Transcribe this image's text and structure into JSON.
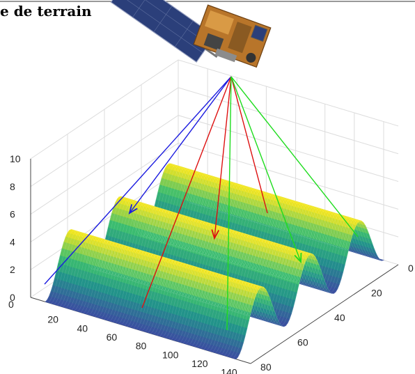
{
  "title": "e de terrain",
  "axes": {
    "x_ticks": [
      "20",
      "40",
      "60",
      "80",
      "100",
      "120",
      "140"
    ],
    "y_ticks": [
      "0",
      "20",
      "40",
      "60",
      "80"
    ],
    "z_ticks": [
      "0",
      "2",
      "4",
      "6",
      "8",
      "10"
    ],
    "corner_tick": "0"
  },
  "colors": {
    "ray_blue": "#1a1adf",
    "ray_red": "#dd1010",
    "ray_green": "#1edc1e",
    "surface_low": "#3b4fa0",
    "surface_mid": "#22a884",
    "surface_high": "#f4e61e"
  },
  "satellite": {
    "icon": "satellite-icon"
  },
  "surface": {
    "type": "sinusoidal-ridges",
    "ridge_count": 3
  }
}
